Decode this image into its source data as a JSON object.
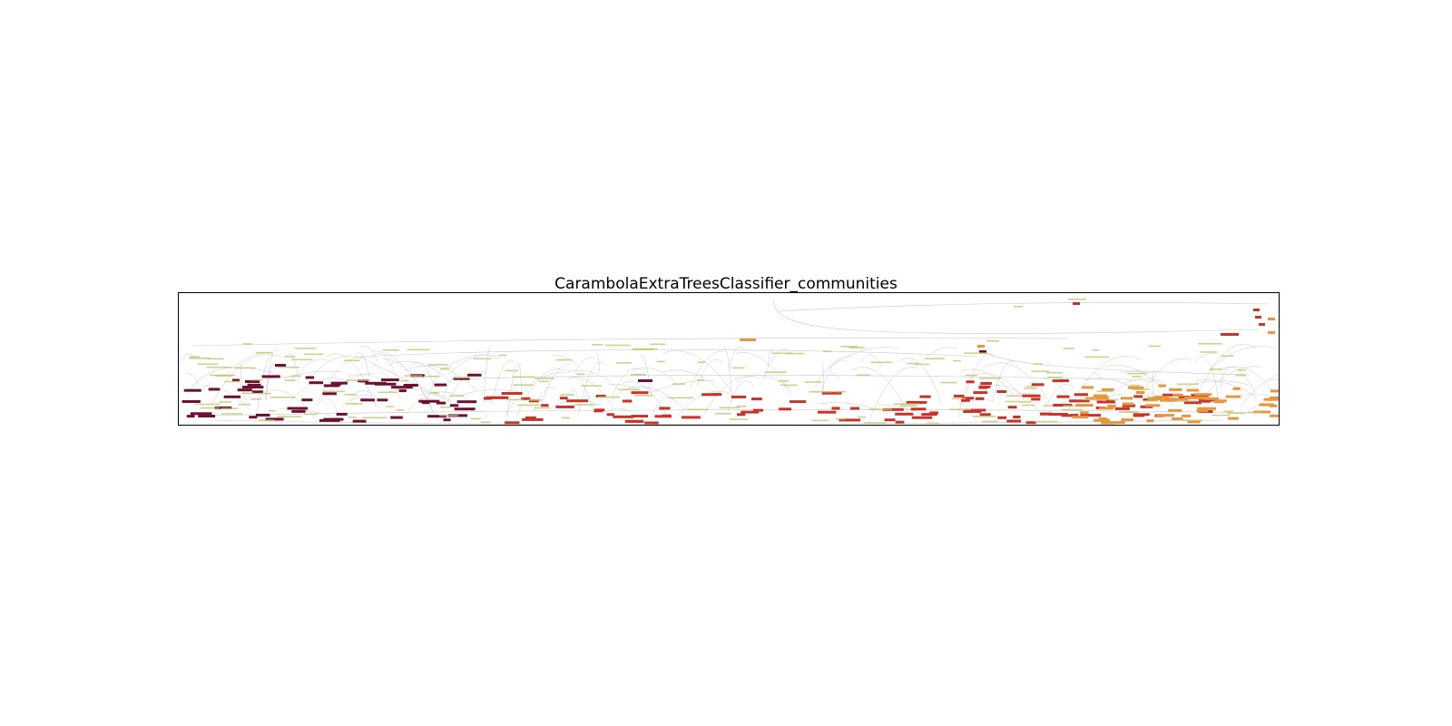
{
  "figure": {
    "title": "CarambolaExtraTreesClassifier_communities"
  },
  "palette": {
    "community_colors": [
      "#6e1130",
      "#c8332a",
      "#e8963c"
    ],
    "edge_color": "#c8c8c8",
    "label_color": "#c4c470"
  }
}
